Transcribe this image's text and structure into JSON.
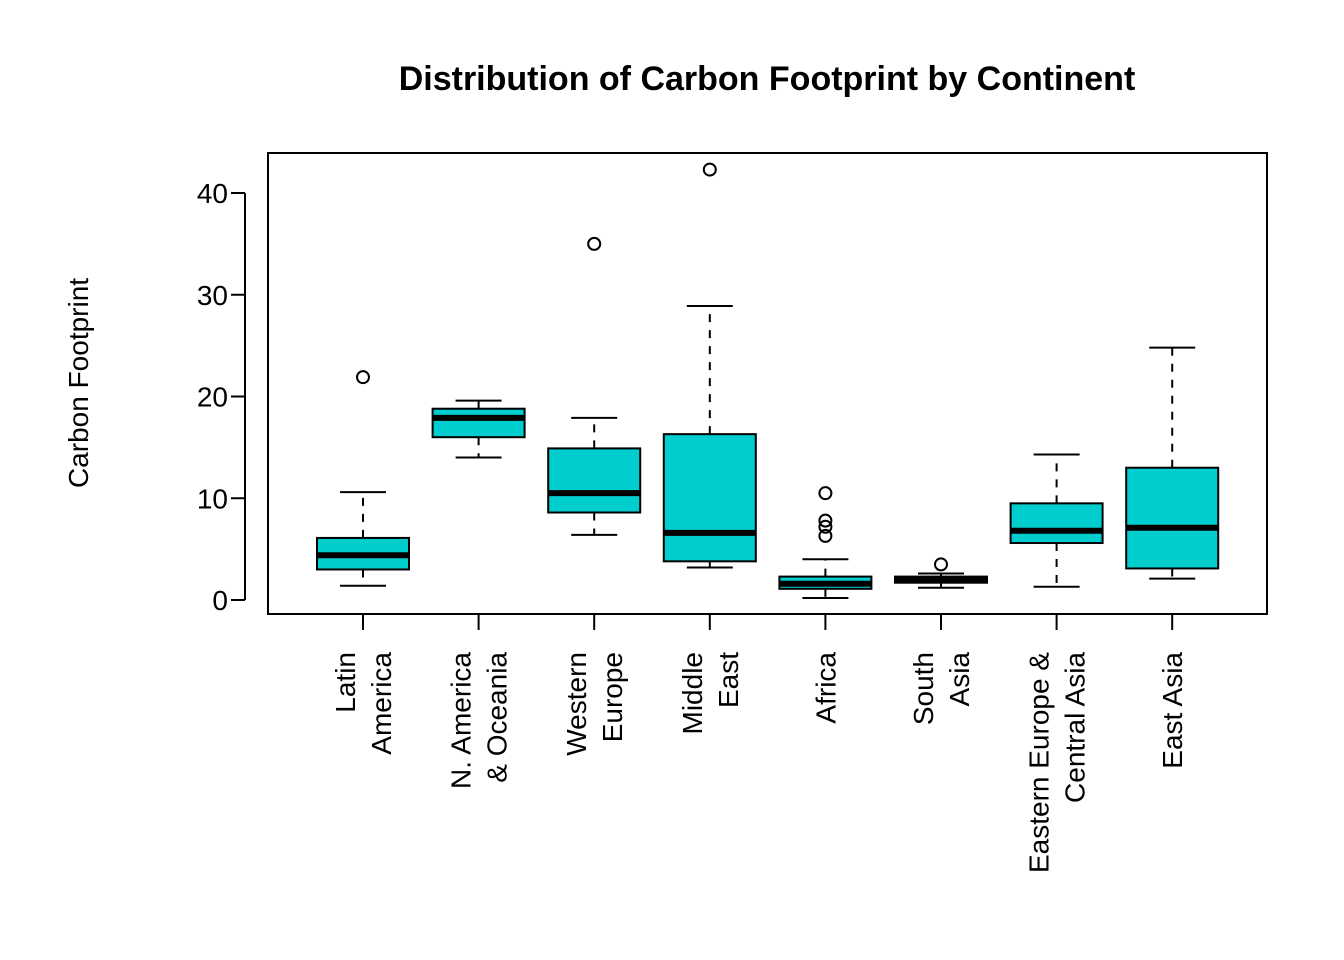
{
  "chart_data": {
    "type": "boxplot",
    "title": "Distribution of Carbon Footprint by Continent",
    "xlabel": "",
    "ylabel": "Carbon Footprint",
    "ylim": [
      -1.5,
      45
    ],
    "yticks": [
      0,
      10,
      20,
      30,
      40
    ],
    "grid": false,
    "legend": "none",
    "box_color": "#00CDCD",
    "categories": [
      {
        "lines": [
          "Latin",
          "America"
        ]
      },
      {
        "lines": [
          "N. America",
          "& Oceania"
        ]
      },
      {
        "lines": [
          "Western",
          "Europe"
        ]
      },
      {
        "lines": [
          "Middle",
          "East"
        ]
      },
      {
        "lines": [
          "Africa"
        ]
      },
      {
        "lines": [
          "South",
          "Asia"
        ]
      },
      {
        "lines": [
          "Eastern Europe &",
          "Central Asia"
        ]
      },
      {
        "lines": [
          "East Asia"
        ]
      }
    ],
    "boxes": [
      {
        "whisker_low": 1.4,
        "q1": 3.0,
        "median": 4.4,
        "q3": 6.1,
        "whisker_high": 10.6,
        "outliers": [
          21.9
        ]
      },
      {
        "whisker_low": 14.0,
        "q1": 16.0,
        "median": 17.9,
        "q3": 18.8,
        "whisker_high": 19.6,
        "outliers": []
      },
      {
        "whisker_low": 6.4,
        "q1": 8.6,
        "median": 10.5,
        "q3": 14.9,
        "whisker_high": 17.9,
        "outliers": [
          35.0
        ]
      },
      {
        "whisker_low": 3.2,
        "q1": 3.8,
        "median": 6.6,
        "q3": 16.3,
        "whisker_high": 28.9,
        "outliers": [
          42.3
        ]
      },
      {
        "whisker_low": 0.2,
        "q1": 1.1,
        "median": 1.6,
        "q3": 2.3,
        "whisker_high": 4.0,
        "outliers": [
          6.3,
          7.2,
          7.8,
          10.5
        ]
      },
      {
        "whisker_low": 1.2,
        "q1": 1.7,
        "median": 2.0,
        "q3": 2.3,
        "whisker_high": 2.6,
        "outliers": [
          3.5
        ]
      },
      {
        "whisker_low": 1.3,
        "q1": 5.6,
        "median": 6.8,
        "q3": 9.5,
        "whisker_high": 14.3,
        "outliers": []
      },
      {
        "whisker_low": 2.1,
        "q1": 3.1,
        "median": 7.1,
        "q3": 13.0,
        "whisker_high": 24.8,
        "outliers": []
      }
    ]
  }
}
